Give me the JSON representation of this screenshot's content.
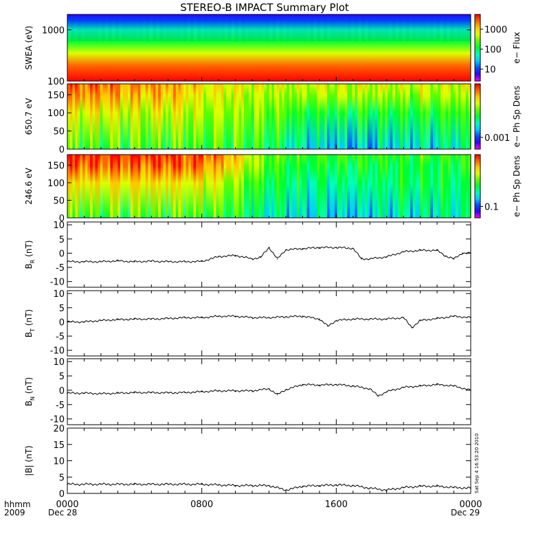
{
  "title": "STEREO-B IMPACT Summary Plot",
  "footer": {
    "hhmm": "hhmm",
    "year": "2009",
    "start_date": "Dec 28",
    "end_date": "Dec 29",
    "stamp": "Sat Sep  4 16:53:20 2010"
  },
  "colormap": [
    "#ff00ff",
    "#3000ff",
    "#0050ff",
    "#00c8ff",
    "#00ffb4",
    "#00ff32",
    "#5aff00",
    "#dcff00",
    "#ffc800",
    "#ff6400",
    "#ff0000"
  ],
  "chart_data": [
    {
      "type": "heatmap",
      "panel": "swea",
      "ylabel": "SWEA (eV)",
      "yscale": "log",
      "ylim": [
        100,
        2000
      ],
      "yticks": [
        "1000",
        "100"
      ],
      "colorbar": {
        "label": "e− Flux",
        "ticks": [
          "1000",
          "100",
          "10"
        ],
        "scale": "log"
      },
      "x_hours": [
        0,
        2,
        4,
        6,
        8,
        10,
        12,
        14,
        16,
        18,
        20,
        22,
        24
      ],
      "profile_by_energy_eV": [
        {
          "energy": 100,
          "level": 0.95
        },
        {
          "energy": 200,
          "level": 0.85
        },
        {
          "energy": 350,
          "level": 0.65
        },
        {
          "energy": 600,
          "level": 0.5
        },
        {
          "energy": 1000,
          "level": 0.35
        },
        {
          "energy": 1500,
          "level": 0.2
        },
        {
          "energy": 2000,
          "level": 0.1
        }
      ]
    },
    {
      "type": "heatmap",
      "panel": "pad650",
      "ylabel": "650.7 eV",
      "ylim": [
        0,
        180
      ],
      "yticks": [
        "150",
        "100",
        "50",
        "0"
      ],
      "colorbar": {
        "label": "e− Ph Sp Dens",
        "ticks": [
          "0.001"
        ],
        "scale": "log"
      },
      "x_hours": [
        0,
        2,
        4,
        6,
        8,
        10,
        12,
        14,
        16,
        18,
        20,
        22,
        24
      ],
      "upper_level": [
        0.9,
        0.9,
        0.85,
        0.85,
        0.75,
        0.75,
        0.7,
        0.7,
        0.7,
        0.7,
        0.7,
        0.7,
        0.7
      ],
      "lower_level": [
        0.55,
        0.55,
        0.55,
        0.55,
        0.55,
        0.55,
        0.5,
        0.35,
        0.28,
        0.32,
        0.35,
        0.38,
        0.4
      ]
    },
    {
      "type": "heatmap",
      "panel": "pad246",
      "ylabel": "246.6 eV",
      "ylim": [
        0,
        180
      ],
      "yticks": [
        "150",
        "100",
        "50",
        "0"
      ],
      "colorbar": {
        "label": "e− Ph Sp Dens",
        "ticks": [
          "0.1"
        ],
        "scale": "log"
      },
      "x_hours": [
        0,
        2,
        4,
        6,
        8,
        10,
        12,
        14,
        16,
        18,
        20,
        22,
        24
      ],
      "upper_level": [
        0.95,
        0.95,
        0.95,
        0.95,
        0.92,
        0.8,
        0.6,
        0.55,
        0.55,
        0.55,
        0.55,
        0.55,
        0.55
      ],
      "lower_level": [
        0.55,
        0.55,
        0.55,
        0.55,
        0.55,
        0.5,
        0.38,
        0.35,
        0.32,
        0.35,
        0.38,
        0.4,
        0.4
      ]
    },
    {
      "type": "line",
      "panel": "br",
      "ylabel": "B_R (nT)",
      "ylabel_main": "B",
      "ylabel_sub": "R",
      "ylabel_unit": "(nT)",
      "ylim": [
        -12,
        11
      ],
      "yticks": [
        10,
        5,
        0,
        -5,
        -10
      ],
      "x_hours": [
        0,
        1,
        2,
        3,
        4,
        5,
        6,
        7,
        8,
        9,
        10,
        11,
        11.5,
        12,
        12.5,
        13,
        14,
        15,
        16,
        17,
        17.5,
        18,
        19,
        20,
        21,
        22,
        22.5,
        23,
        23.5,
        24
      ],
      "y": [
        -3,
        -3,
        -3,
        -2.7,
        -3,
        -2.8,
        -3,
        -3,
        -2.9,
        -1.2,
        -0.8,
        -2,
        -1.5,
        2,
        -2,
        1.2,
        1.6,
        2.0,
        2.0,
        1.7,
        -2,
        -2,
        -1.3,
        0.5,
        1,
        1,
        -1,
        -2,
        0,
        0
      ]
    },
    {
      "type": "line",
      "panel": "bt",
      "ylabel": "B_T (nT)",
      "ylabel_main": "B",
      "ylabel_sub": "T",
      "ylabel_unit": "(nT)",
      "ylim": [
        -12,
        11
      ],
      "yticks": [
        10,
        5,
        0,
        -5,
        -10
      ],
      "x_hours": [
        0,
        1,
        2,
        3,
        4,
        5,
        6,
        7,
        8,
        9,
        10,
        11,
        12,
        13,
        14,
        15,
        15.5,
        16,
        17,
        18,
        19,
        20,
        20.5,
        21,
        22,
        23,
        24
      ],
      "y": [
        0,
        0,
        0.5,
        0.8,
        1,
        1,
        1.2,
        1.5,
        1.5,
        2,
        2,
        1.5,
        1.5,
        1.8,
        2,
        1,
        -1.5,
        0.5,
        1,
        1,
        1,
        1.5,
        -2,
        0.5,
        1.2,
        2,
        1.5
      ]
    },
    {
      "type": "line",
      "panel": "bn",
      "ylabel": "B_N (nT)",
      "ylabel_main": "B",
      "ylabel_sub": "N",
      "ylabel_unit": "(nT)",
      "ylim": [
        -12,
        11
      ],
      "yticks": [
        10,
        5,
        0,
        -5,
        -10
      ],
      "x_hours": [
        0,
        1,
        2,
        3,
        4,
        5,
        6,
        7,
        8,
        9,
        10,
        11,
        12,
        12.5,
        13,
        14,
        15,
        16,
        17,
        18,
        18.5,
        19,
        20,
        21,
        22,
        23,
        24
      ],
      "y": [
        -1,
        -1,
        -1.2,
        -1,
        -0.8,
        -0.8,
        -0.9,
        -0.8,
        -0.5,
        -0.2,
        -0.2,
        -0.2,
        0.5,
        -1.5,
        0.2,
        2,
        1.8,
        2,
        1.5,
        0.5,
        -2,
        -0.5,
        1,
        1.5,
        2,
        1.5,
        0
      ]
    },
    {
      "type": "line",
      "panel": "bmag",
      "ylabel": "|B| (nT)",
      "ylim": [
        0,
        20
      ],
      "yticks": [
        20,
        15,
        10,
        5,
        0
      ],
      "x_hours": [
        0,
        2,
        4,
        6,
        8,
        9,
        10,
        11,
        12,
        13,
        14,
        15,
        16,
        17,
        18,
        19,
        20,
        21,
        22,
        23,
        24
      ],
      "y": [
        2.8,
        2.8,
        2.8,
        2.8,
        2.8,
        2.6,
        2.4,
        2.4,
        2.4,
        1.0,
        2.2,
        2.4,
        2.6,
        2.4,
        1.6,
        1.0,
        1.8,
        2.2,
        2.2,
        1.8,
        1.6
      ]
    }
  ],
  "x_axis": {
    "ticks": [
      {
        "hour": 0,
        "label": "0000"
      },
      {
        "hour": 8,
        "label": "0800"
      },
      {
        "hour": 16,
        "label": "1600"
      },
      {
        "hour": 24,
        "label": "0000"
      }
    ]
  }
}
